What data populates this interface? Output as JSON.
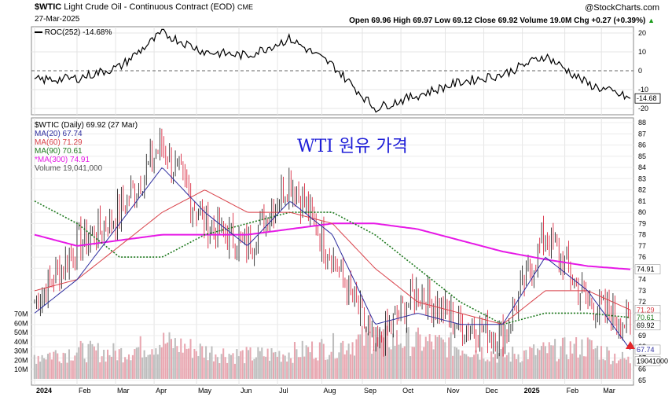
{
  "header": {
    "symbol": "$WTIC",
    "description": "Light Crude Oil - Continuous Contract (EOD)",
    "exchange": "CME",
    "date": "27-Mar-2025",
    "brand": "@StockCharts.com",
    "ohlc": "Open 69.96  High 69.97  Low 69.12  Close 69.92  Volume 19.0M  Chg +0.27 (+0.39%)",
    "ohlc_arrow": "▲"
  },
  "roc_panel": {
    "label": "ROC(252) -14.68%",
    "current_value": "-14.68",
    "ticks": [
      "20",
      "10",
      "0",
      "-10",
      "-20"
    ]
  },
  "price_panel": {
    "legend": [
      {
        "text": "$WTIC (Daily) 69.92 (27 Mar)",
        "color": "#000000"
      },
      {
        "text": "MA(20) 67.74",
        "color": "#2d2d9e"
      },
      {
        "text": "MA(60) 71.29",
        "color": "#d9424a"
      },
      {
        "text": "MA(90) 70.61",
        "color": "#1f7a1f"
      },
      {
        "text": "*MA(300) 74.91",
        "color": "#e619e6"
      },
      {
        "text": "Volume 19,041,000",
        "color": "#555555"
      }
    ],
    "annotation": "WTI 원유 가격",
    "right_ticks": [
      "88",
      "87",
      "86",
      "85",
      "84",
      "83",
      "82",
      "81",
      "80",
      "79",
      "78",
      "77",
      "76",
      "75",
      "74",
      "73",
      "72",
      "71",
      "70",
      "69",
      "68",
      "67",
      "66",
      "65"
    ],
    "value_labels": {
      "ma300": "74.91",
      "ma60": "71.29",
      "ma90": "70.61",
      "close": "69.92",
      "ma20": "67.74",
      "volume": "19041000"
    },
    "volume_ticks": [
      "70M",
      "60M",
      "50M",
      "40M",
      "30M",
      "20M",
      "10M"
    ],
    "x_labels": [
      "2024",
      "Feb",
      "Mar",
      "Apr",
      "May",
      "Jun",
      "Jul",
      "Aug",
      "Sep",
      "Oct",
      "Nov",
      "Dec",
      "2025",
      "Feb",
      "Mar"
    ]
  },
  "colors": {
    "up": "#111111",
    "down": "#d6112b",
    "ma20": "#2d2d9e",
    "ma60": "#d9424a",
    "ma90": "#1f7a1f",
    "ma300": "#e619e6",
    "volume": "#bdbdbd",
    "volume_down": "#e8a6b0"
  },
  "chart_data": [
    {
      "type": "line",
      "title": "ROC(252)",
      "x": [
        "2024-01",
        "2024-02",
        "2024-03",
        "2024-04",
        "2024-05",
        "2024-06",
        "2024-07",
        "2024-08",
        "2024-09",
        "2024-10",
        "2024-11",
        "2024-12",
        "2025-01",
        "2025-02",
        "2025-03"
      ],
      "series": [
        {
          "name": "ROC(252)",
          "values": [
            -5,
            -4,
            2,
            20,
            10,
            8,
            17,
            3,
            -20,
            -13,
            -6,
            -2,
            8,
            -7,
            -14.68
          ]
        }
      ],
      "ylim": [
        -25,
        25
      ]
    },
    {
      "type": "line",
      "title": "$WTIC (Daily) 69.92 (27 Mar)",
      "x": [
        "2024-01",
        "2024-02",
        "2024-03",
        "2024-04",
        "2024-05",
        "2024-06",
        "2024-07",
        "2024-08",
        "2024-09",
        "2024-10",
        "2024-11",
        "2024-12",
        "2025-01",
        "2025-02",
        "2025-03"
      ],
      "series": [
        {
          "name": "$WTIC",
          "values": [
            72,
            77,
            80,
            86,
            79,
            77,
            83,
            76,
            68,
            73,
            70,
            69,
            78,
            72,
            69.92
          ]
        },
        {
          "name": "MA(20)",
          "values": [
            71,
            74,
            79,
            84,
            80,
            77,
            81,
            78,
            70,
            71,
            70,
            70,
            76,
            73,
            67.74
          ]
        },
        {
          "name": "MA(60)",
          "values": [
            73,
            74,
            77,
            80,
            82,
            80,
            80,
            79,
            75,
            72,
            71,
            70,
            73,
            73,
            71.29
          ]
        },
        {
          "name": "MA(90)",
          "values": [
            81,
            79,
            76,
            76,
            78,
            79,
            80,
            80,
            78,
            75,
            72,
            70,
            71,
            71,
            70.61
          ]
        },
        {
          "name": "*MA(300)",
          "values": [
            78,
            77,
            77.5,
            78,
            78,
            78,
            78.5,
            79,
            79,
            78.5,
            77.5,
            76.5,
            75.8,
            75.2,
            74.91
          ]
        }
      ],
      "ylim": [
        65,
        88
      ]
    },
    {
      "type": "bar",
      "title": "Volume",
      "x": [
        "2024-01",
        "2024-02",
        "2024-03",
        "2024-04",
        "2024-05",
        "2024-06",
        "2024-07",
        "2024-08",
        "2024-09",
        "2024-10",
        "2024-11",
        "2024-12",
        "2025-01",
        "2025-02",
        "2025-03"
      ],
      "series": [
        {
          "name": "Volume",
          "values": [
            25,
            30,
            28,
            40,
            30,
            25,
            28,
            35,
            45,
            40,
            35,
            25,
            30,
            35,
            19.04
          ]
        }
      ],
      "ylim": [
        0,
        75
      ]
    }
  ]
}
